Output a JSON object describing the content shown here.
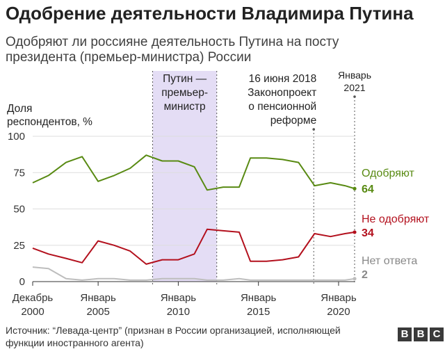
{
  "title": "Одобрение деятельности Владимира Путина",
  "subtitle": "Одобряют ли россияне деятельность Путина на посту президента (премьер-министра) России",
  "source": "Источник: “Левада-центр” (признан в России организацией, исполняющей функции иностранного агента)",
  "logo": [
    "B",
    "B",
    "C"
  ],
  "colors": {
    "approve": "#588a12",
    "disapprove": "#b3101d",
    "noanswer": "#bdbdbd",
    "band": "#e4ddf5"
  },
  "chart_data": {
    "type": "line",
    "ylabel": "Доля респондентов, %",
    "ylim": [
      0,
      100
    ],
    "yticks": [
      0,
      25,
      50,
      75,
      100
    ],
    "xlim": [
      2000.917,
      2021.0
    ],
    "x_ticks": [
      {
        "x": 2000.917,
        "line1": "Декабрь",
        "line2": "2000"
      },
      {
        "x": 2005.0,
        "line1": "Январь",
        "line2": "2005"
      },
      {
        "x": 2010.0,
        "line1": "Январь",
        "line2": "2010"
      },
      {
        "x": 2015.0,
        "line1": "Январь",
        "line2": "2015"
      },
      {
        "x": 2020.0,
        "line1": "Январь",
        "line2": "2020"
      }
    ],
    "x": [
      2000.917,
      2001.9,
      2003.0,
      2004.0,
      2005.0,
      2006.0,
      2007.0,
      2008.0,
      2009.0,
      2010.0,
      2011.0,
      2011.8,
      2012.8,
      2013.8,
      2014.5,
      2015.5,
      2016.5,
      2017.5,
      2018.5,
      2019.5,
      2020.4,
      2021.0
    ],
    "series": [
      {
        "key": "approve",
        "name": "Одобряют",
        "last": "64",
        "values": [
          68,
          73,
          82,
          86,
          69,
          73,
          78,
          87,
          83,
          83,
          79,
          63,
          65,
          65,
          85,
          85,
          84,
          82,
          66,
          68,
          66,
          64
        ]
      },
      {
        "key": "disapprove",
        "name": "Не одобряют",
        "last": "34",
        "values": [
          23,
          19,
          16,
          13,
          28,
          25,
          21,
          12,
          15,
          15,
          19,
          36,
          35,
          34,
          14,
          14,
          15,
          17,
          33,
          31,
          33,
          34
        ]
      },
      {
        "key": "noanswer",
        "name": "Нет ответа",
        "last": "2",
        "values": [
          10,
          9,
          2,
          1,
          2,
          2,
          1,
          1,
          2,
          2,
          2,
          1,
          1,
          2,
          1,
          1,
          1,
          1,
          1,
          1,
          1,
          2
        ]
      }
    ],
    "band": {
      "x0": 2008.4,
      "x1": 2012.4,
      "label": [
        "Путин —",
        "премьер-",
        "министр"
      ]
    },
    "annotations": [
      {
        "x": 2018.45,
        "lines": [
          "16 июня 2018",
          "Законопроект",
          "о пенсионной",
          "реформе"
        ]
      },
      {
        "x": 2021.0,
        "lines": [
          "Январь",
          "2021"
        ]
      }
    ]
  }
}
